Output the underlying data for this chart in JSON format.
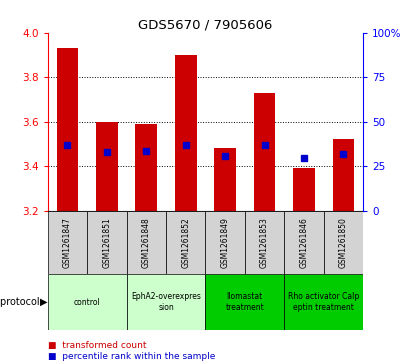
{
  "title": "GDS5670 / 7905606",
  "samples": [
    "GSM1261847",
    "GSM1261851",
    "GSM1261848",
    "GSM1261852",
    "GSM1261849",
    "GSM1261853",
    "GSM1261846",
    "GSM1261850"
  ],
  "bar_bottom": 3.2,
  "transformed_counts": [
    3.93,
    3.6,
    3.59,
    3.9,
    3.48,
    3.73,
    3.39,
    3.52
  ],
  "percentile_ranks": [
    3.495,
    3.465,
    3.468,
    3.495,
    3.445,
    3.493,
    3.435,
    3.455
  ],
  "ylim": [
    3.2,
    4.0
  ],
  "yticks_left": [
    3.2,
    3.4,
    3.6,
    3.8,
    4.0
  ],
  "yticks_right": [
    0,
    25,
    50,
    75,
    100
  ],
  "bar_color": "#cc0000",
  "dot_color": "#0000cc",
  "protocol_groups": [
    {
      "label": "control",
      "indices": [
        0,
        1
      ],
      "color": "#ccffcc"
    },
    {
      "label": "EphA2-overexpres\nsion",
      "indices": [
        2,
        3
      ],
      "color": "#ccffcc"
    },
    {
      "label": "Ilomastat\ntreatment",
      "indices": [
        4,
        5
      ],
      "color": "#00cc00"
    },
    {
      "label": "Rho activator Calp\neptin treatment",
      "indices": [
        6,
        7
      ],
      "color": "#00cc00"
    }
  ],
  "grid_yticks": [
    3.4,
    3.6,
    3.8
  ],
  "bar_width": 0.55,
  "dot_size": 18,
  "sample_box_color": "#d3d3d3",
  "legend_red_label": "transformed count",
  "legend_blue_label": "percentile rank within the sample"
}
